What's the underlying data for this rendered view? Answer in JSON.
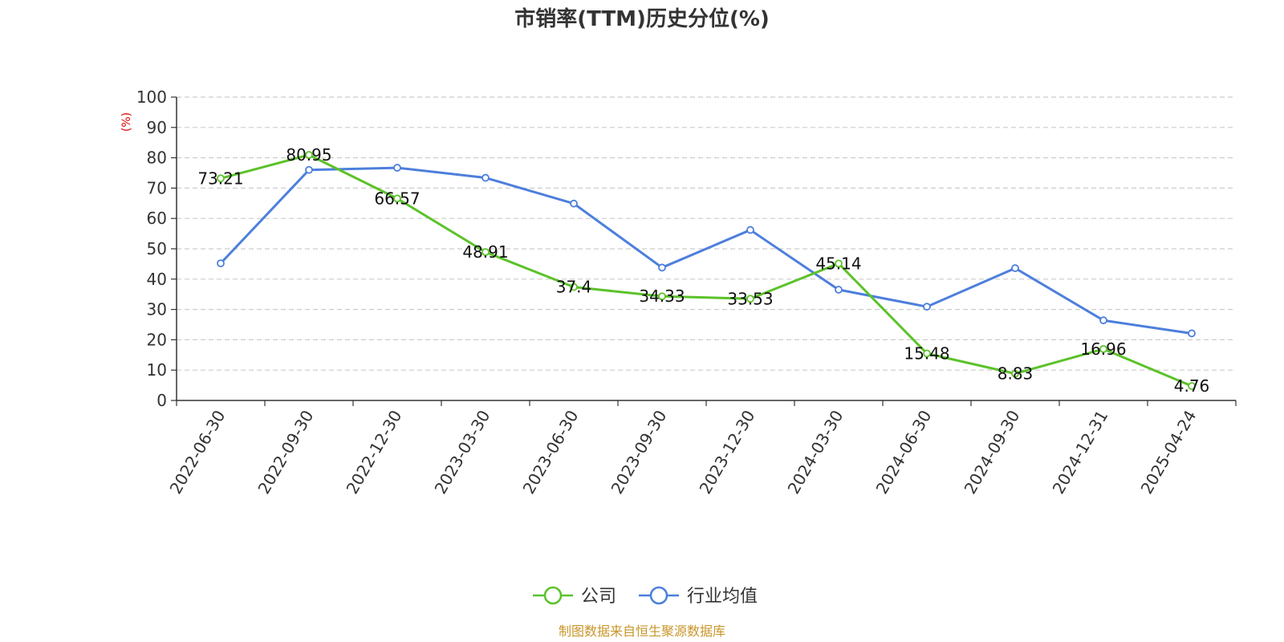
{
  "chart_data": {
    "type": "line",
    "title": "市销率(TTM)历史分位(%)",
    "ylabel": "(%)",
    "ylim": [
      0,
      100
    ],
    "yticks": [
      0,
      10,
      20,
      30,
      40,
      50,
      60,
      70,
      80,
      90,
      100
    ],
    "categories": [
      "2022-06-30",
      "2022-09-30",
      "2022-12-30",
      "2023-03-30",
      "2023-06-30",
      "2023-09-30",
      "2023-12-30",
      "2024-03-30",
      "2024-06-30",
      "2024-09-30",
      "2024-12-31",
      "2025-04-24"
    ],
    "grid": true,
    "legend_position": "bottom",
    "series": [
      {
        "name": "公司",
        "color": "#5cc22a",
        "values": [
          73.21,
          80.95,
          66.57,
          48.91,
          37.4,
          34.33,
          33.53,
          45.14,
          15.48,
          8.83,
          16.96,
          4.76
        ],
        "labels": [
          "73.21",
          "80.95",
          "66.57",
          "48.91",
          "37.4",
          "34.33",
          "33.53",
          "45.14",
          "15.48",
          "8.83",
          "16.96",
          "4.76"
        ]
      },
      {
        "name": "行业均值",
        "color": "#4d7fdc",
        "values": [
          45.2,
          76.0,
          76.7,
          73.4,
          64.9,
          43.8,
          56.2,
          36.5,
          30.9,
          43.6,
          26.4,
          22.1
        ]
      }
    ],
    "source": "制图数据来自恒生聚源数据库"
  }
}
